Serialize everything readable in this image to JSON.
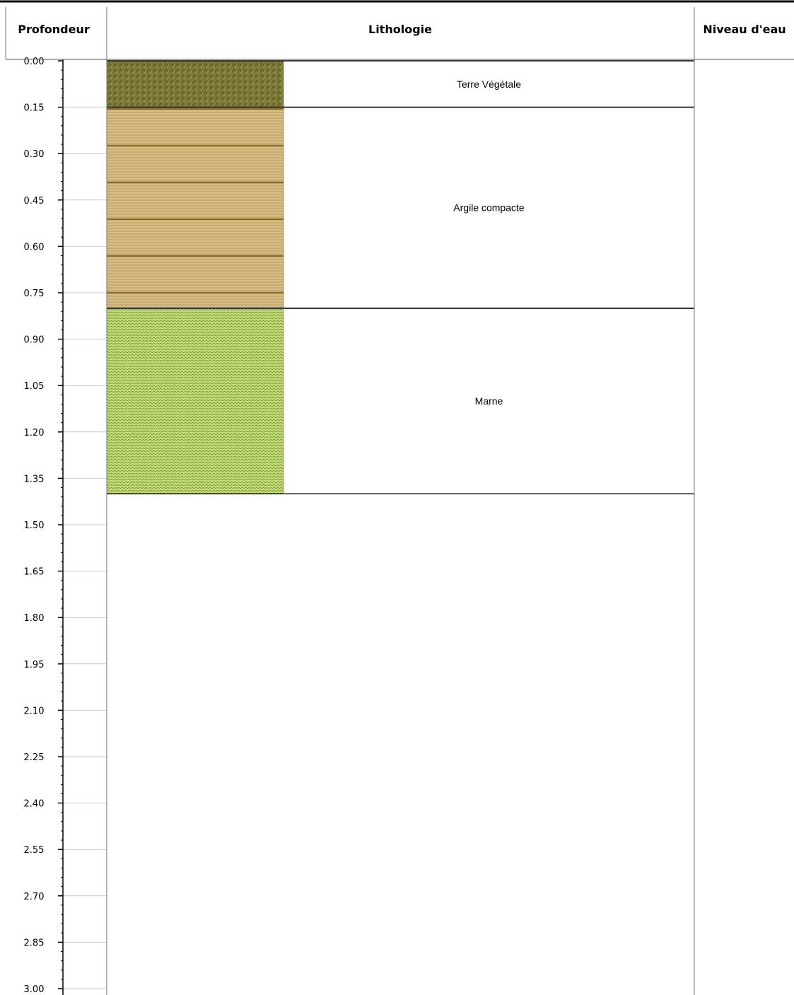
{
  "headers": {
    "depth": "Profondeur",
    "lithology": "Lithologie",
    "water_level": "Niveau d'eau"
  },
  "depth_scale": {
    "labels": [
      "0.00",
      "0.15",
      "0.30",
      "0.45",
      "0.60",
      "0.75",
      "0.90",
      "1.05",
      "1.20",
      "1.35",
      "1.50",
      "1.65",
      "1.80",
      "1.95",
      "2.10",
      "2.25",
      "2.40",
      "2.55",
      "2.70",
      "2.85",
      "3.00"
    ],
    "min": 0,
    "max": 3.0,
    "major_step": 0.15,
    "minor_step": 0.03
  },
  "layers": [
    {
      "name": "Terre Végétale",
      "top": 0.0,
      "bottom": 0.15,
      "pattern": "topsoil",
      "color": "#7d7a3a"
    },
    {
      "name": "Argile compacte",
      "top": 0.15,
      "bottom": 0.8,
      "pattern": "clay",
      "color": "#c9ac70"
    },
    {
      "name": "Marne",
      "top": 0.8,
      "bottom": 1.4,
      "pattern": "marl",
      "color": "#a8c85a"
    }
  ],
  "colors": {
    "topsoil_dark": "#5b5a22",
    "topsoil_light": "#9a974e",
    "clay_light": "#d6bd85",
    "clay_dark": "#8a6a24",
    "marl_light": "#c6df7c",
    "marl_dark": "#7f9c36",
    "gridline": "#c8c8c8"
  }
}
